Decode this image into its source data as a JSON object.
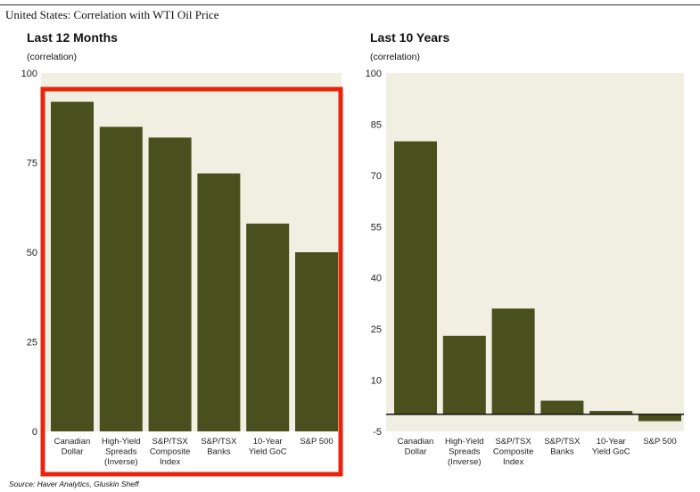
{
  "figure_title": "United States: Correlation with WTI Oil Price",
  "source": "Source: Haver Analytics, Gluskin Sheff",
  "colors": {
    "bar": "#4a4f1e",
    "plot_bg": "#f1efe2",
    "highlight": "#e8250c"
  },
  "chart_data": [
    {
      "type": "bar",
      "title": "Last 12 Months",
      "ylabel": "(correlation)",
      "categories": [
        [
          "Canadian",
          "Dollar"
        ],
        [
          "High-Yield",
          "Spreads",
          "(Inverse)"
        ],
        [
          "S&P/TSX",
          "Composite",
          "Index"
        ],
        [
          "S&P/TSX",
          "Banks"
        ],
        [
          "10-Year",
          "Yield GoC"
        ],
        [
          "S&P 500"
        ]
      ],
      "values": [
        92,
        85,
        82,
        72,
        58,
        50
      ],
      "ylim": [
        0,
        100
      ],
      "yticks": [
        0,
        25,
        50,
        75,
        100
      ],
      "highlighted": true
    },
    {
      "type": "bar",
      "title": "Last 10 Years",
      "ylabel": "(correlation)",
      "categories": [
        [
          "Canadian",
          "Dollar"
        ],
        [
          "High-Yield",
          "Spreads",
          "(Inverse)"
        ],
        [
          "S&P/TSX",
          "Composite",
          "Index"
        ],
        [
          "S&P/TSX",
          "Banks"
        ],
        [
          "10-Year",
          "Yield GoC"
        ],
        [
          "S&P 500"
        ]
      ],
      "values": [
        80,
        23,
        31,
        4,
        1,
        -2
      ],
      "ylim": [
        -5,
        100
      ],
      "yticks": [
        -5,
        10,
        25,
        40,
        55,
        70,
        85,
        100
      ],
      "highlighted": false
    }
  ]
}
